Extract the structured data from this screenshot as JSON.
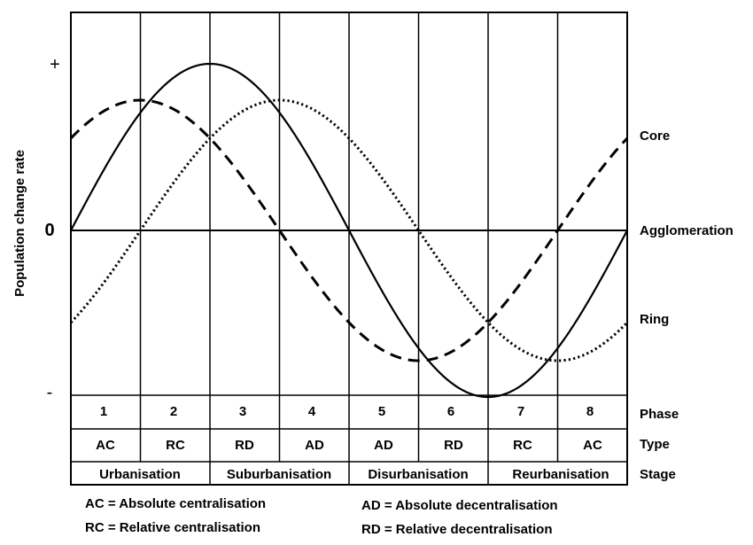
{
  "y_axis": {
    "label": "Population change rate",
    "plus": "+",
    "zero": "0",
    "minus": "-"
  },
  "curve_labels": {
    "core": "Core",
    "agglomeration": "Agglomeration",
    "ring": "Ring"
  },
  "row_labels": {
    "phase": "Phase",
    "type": "Type",
    "stage": "Stage"
  },
  "phases": [
    "1",
    "2",
    "3",
    "4",
    "5",
    "6",
    "7",
    "8"
  ],
  "types": [
    "AC",
    "RC",
    "RD",
    "AD",
    "AD",
    "RD",
    "RC",
    "AC"
  ],
  "stages": [
    "Urbanisation",
    "Suburbanisation",
    "Disurbanisation",
    "Reurbanisation"
  ],
  "legend": {
    "ac": "AC = Absolute centralisation",
    "rc": "RC = Relative centralisation",
    "ad": "AD = Absolute decentralisation",
    "rd": "RD = Relative decentralisation"
  },
  "colors": {
    "line": "#000000",
    "background": "#ffffff"
  },
  "line_styles": {
    "agglomeration": "solid",
    "core": "dashed",
    "ring": "dotted"
  }
}
